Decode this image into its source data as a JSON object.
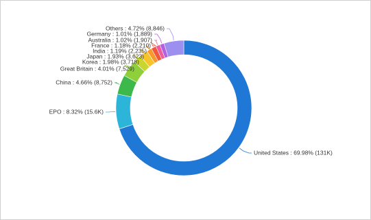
{
  "chart_data": {
    "type": "donut",
    "value_labels": [
      "United States : 69.98% (131K)",
      "EPO : 8.32% (15.6K)",
      "China : 4.66% (8,752)",
      "Great Britain : 4.01% (7,529)",
      "Korea : 1.98% (3,718)",
      "Japan : 1.93% (3,623)",
      "India : 1.19% (2,235)",
      "France : 1.18% (2,210)",
      "Australia : 1.02% (1,907)",
      "Germany : 1.01% (1,889)",
      "Others : 4.72% (8,846)"
    ],
    "values": [
      69.98,
      8.32,
      4.66,
      4.01,
      1.98,
      1.93,
      1.19,
      1.18,
      1.02,
      1.01,
      4.72
    ],
    "colors": [
      "#1f77d6",
      "#2cb5d8",
      "#3db84a",
      "#8fcf3a",
      "#c8d62e",
      "#f5c32c",
      "#f79a2b",
      "#f0573c",
      "#ef5a9a",
      "#b45ee0",
      "#9d8ff0"
    ]
  }
}
